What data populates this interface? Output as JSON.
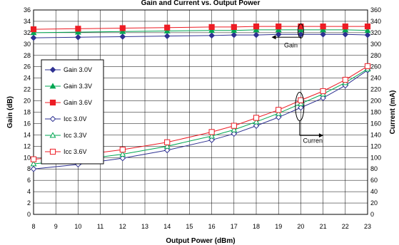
{
  "chart_data": {
    "type": "line",
    "title_partial": "Gain and Current vs. Output Power",
    "xlabel": "Output Power (dBm)",
    "ylabel_left": "Gain (dB)",
    "ylabel_right": "Current (mA)",
    "xlim": [
      8,
      23
    ],
    "ylim_left": [
      0,
      36
    ],
    "ylim_right": [
      0,
      360
    ],
    "x_ticks": [
      "8",
      "9",
      "10",
      "11",
      "12",
      "13",
      "14",
      "15",
      "16",
      "17",
      "18",
      "19",
      "20",
      "21",
      "22",
      "23"
    ],
    "y_left_ticks": [
      "0",
      "2",
      "4",
      "6",
      "8",
      "10",
      "12",
      "14",
      "16",
      "18",
      "20",
      "22",
      "24",
      "26",
      "28",
      "30",
      "32",
      "34",
      "36"
    ],
    "y_right_ticks": [
      "0",
      "20",
      "40",
      "60",
      "80",
      "100",
      "120",
      "140",
      "160",
      "180",
      "200",
      "220",
      "240",
      "260",
      "280",
      "300",
      "320",
      "340",
      "360"
    ],
    "grid": true,
    "legend_position": "left-middle",
    "annotations": [
      {
        "text": "Gain",
        "x": 20,
        "y": 30.3,
        "arrow_to": [
          18.9,
          31.2
        ]
      },
      {
        "text": "Curren",
        "x": 20.5,
        "y": 13.9,
        "arrow_to": [
          20.9,
          13.9
        ]
      }
    ],
    "series": [
      {
        "name": "Gain 3.0V",
        "axis": "left",
        "marker": "diamond-filled",
        "color": "#2e3192",
        "x": [
          8,
          10,
          12,
          14,
          16,
          17,
          18,
          19,
          20,
          21,
          22,
          23
        ],
        "y": [
          31.1,
          31.2,
          31.3,
          31.4,
          31.5,
          31.6,
          31.6,
          31.7,
          31.7,
          31.7,
          31.7,
          31.6
        ]
      },
      {
        "name": "Gain 3.3V",
        "axis": "left",
        "marker": "triangle-filled",
        "color": "#00a651",
        "x": [
          8,
          10,
          12,
          14,
          16,
          17,
          18,
          19,
          20,
          21,
          22,
          23
        ],
        "y": [
          32.0,
          32.1,
          32.2,
          32.3,
          32.4,
          32.4,
          32.5,
          32.5,
          32.5,
          32.5,
          32.5,
          32.4
        ]
      },
      {
        "name": "Gain 3.6V",
        "axis": "left",
        "marker": "square-filled",
        "color": "#ed1c24",
        "x": [
          8,
          10,
          12,
          14,
          16,
          17,
          18,
          19,
          20,
          21,
          22,
          23
        ],
        "y": [
          32.6,
          32.7,
          32.8,
          32.9,
          33.0,
          33.0,
          33.1,
          33.1,
          33.1,
          33.1,
          33.1,
          33.1
        ]
      },
      {
        "name": "Icc 3.0V",
        "axis": "right",
        "marker": "diamond-open",
        "color": "#2e3192",
        "x": [
          8,
          10,
          12,
          14,
          16,
          17,
          18,
          19,
          20,
          21,
          22,
          23
        ],
        "y": [
          80,
          88,
          99,
          113,
          131,
          142,
          156,
          171,
          188,
          205,
          227,
          254
        ]
      },
      {
        "name": "Icc 3.3V",
        "axis": "right",
        "marker": "triangle-open",
        "color": "#00a651",
        "x": [
          8,
          10,
          12,
          14,
          16,
          17,
          18,
          19,
          20,
          21,
          22,
          23
        ],
        "y": [
          89,
          96,
          106,
          120,
          138,
          149,
          163,
          178,
          195,
          212,
          232,
          256
        ]
      },
      {
        "name": "Icc 3.6V",
        "axis": "right",
        "marker": "square-open",
        "color": "#ed1c24",
        "x": [
          8,
          10,
          12,
          14,
          16,
          17,
          18,
          19,
          20,
          21,
          22,
          23
        ],
        "y": [
          97,
          104,
          114,
          127,
          145,
          156,
          170,
          184,
          201,
          217,
          237,
          261
        ]
      }
    ]
  }
}
